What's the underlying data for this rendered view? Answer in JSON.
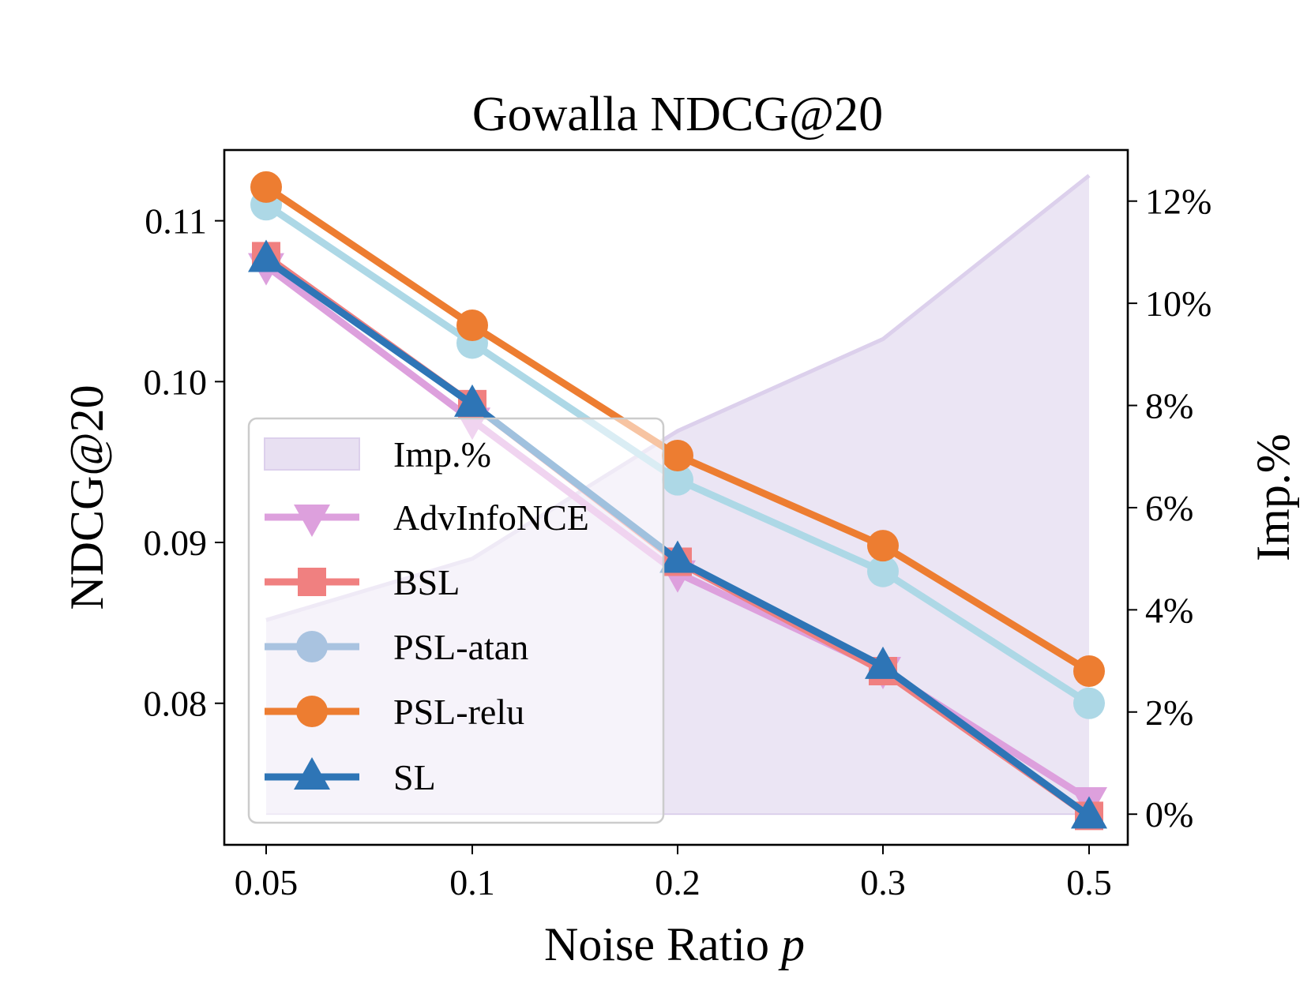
{
  "chart_data": {
    "type": "line",
    "title": "Gowalla  NDCG@20",
    "xlabel": "Noise Ratio",
    "xlabel_italic": "p",
    "ylabel": "NDCG@20",
    "y2label": "Imp.%",
    "categories": [
      "0.05",
      "0.1",
      "0.2",
      "0.3",
      "0.5"
    ],
    "ylim": [
      0.0712,
      0.1144
    ],
    "yticks": [
      "0.08",
      "0.09",
      "0.10",
      "0.11"
    ],
    "y2lim": [
      -0.6,
      13.0
    ],
    "y2ticks": [
      "0%",
      "2%",
      "4%",
      "6%",
      "8%",
      "10%",
      "12%"
    ],
    "series": [
      {
        "name": "AdvInfoNCE",
        "color": "#dda0dd",
        "marker": "triangle-down",
        "values": [
          0.1072,
          0.0976,
          0.0881,
          0.0821,
          0.074
        ]
      },
      {
        "name": "BSL",
        "color": "#f08080",
        "marker": "square",
        "values": [
          0.1078,
          0.0986,
          0.0888,
          0.082,
          0.073
        ]
      },
      {
        "name": "PSL-atan",
        "color": "#add8e6",
        "marker": "circle",
        "legend_color": "#a9c3e0",
        "values": [
          0.111,
          0.1024,
          0.0939,
          0.0882,
          0.08
        ]
      },
      {
        "name": "PSL-relu",
        "color": "#ed7d31",
        "marker": "circle",
        "values": [
          0.1121,
          0.1035,
          0.0954,
          0.0898,
          0.082
        ]
      },
      {
        "name": "SL",
        "color": "#2e75b6",
        "marker": "triangle-up",
        "values": [
          0.1076,
          0.0986,
          0.0889,
          0.0823,
          0.073
        ]
      }
    ],
    "area": {
      "name": "Imp.%",
      "fill": "#e8e0f2",
      "line": "#dcd0ec",
      "values": [
        3.8,
        5.0,
        7.5,
        9.3,
        12.5
      ]
    },
    "legend": {
      "position": "lower-left",
      "order": [
        "Imp.%",
        "AdvInfoNCE",
        "BSL",
        "PSL-atan",
        "PSL-relu",
        "SL"
      ]
    },
    "grid": false
  }
}
